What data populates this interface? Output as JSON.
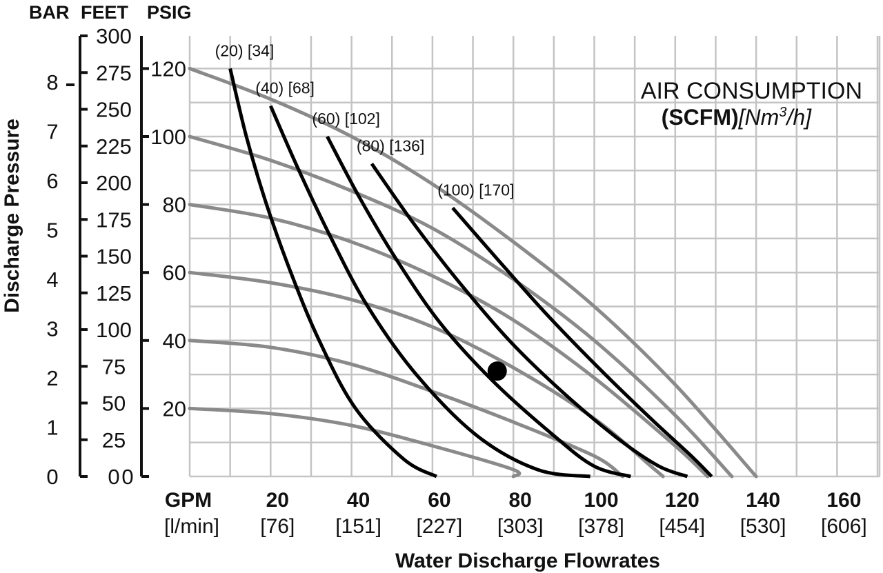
{
  "chart_data": {
    "type": "line",
    "title": {
      "line1": "AIR CONSUMPTION",
      "line2_bold": "(SCFM)",
      "line2_italic_prefix": "[Nm",
      "line2_italic_sup": "3",
      "line2_italic_suffix": "/h]"
    },
    "header_units": [
      "BAR",
      "FEET",
      "PSIG"
    ],
    "ylabel": "Discharge Pressure",
    "xlabel": "Water Discharge Flowrates",
    "x_unit_top": "GPM",
    "x_unit_bottom": "[l/min]",
    "xlim": [
      0,
      170
    ],
    "ylim_psig": [
      0,
      130
    ],
    "x_ticks": [
      {
        "gpm": "20",
        "lpm": "[76]",
        "x": 20
      },
      {
        "gpm": "40",
        "lpm": "[151]",
        "x": 40
      },
      {
        "gpm": "60",
        "lpm": "[227]",
        "x": 60
      },
      {
        "gpm": "80",
        "lpm": "[303]",
        "x": 80
      },
      {
        "gpm": "100",
        "lpm": "[378]",
        "x": 100
      },
      {
        "gpm": "120",
        "lpm": "[454]",
        "x": 120
      },
      {
        "gpm": "140",
        "lpm": "[530]",
        "x": 140
      },
      {
        "gpm": "160",
        "lpm": "[606]",
        "x": 160
      }
    ],
    "psig_ticks": [
      "20",
      "40",
      "60",
      "80",
      "100",
      "120"
    ],
    "psig_tick_values": [
      20,
      40,
      60,
      80,
      100,
      120
    ],
    "feet_ticks": [
      "0",
      "25",
      "50",
      "75",
      "100",
      "125",
      "150",
      "175",
      "200",
      "225",
      "250",
      "275",
      "300"
    ],
    "feet_tick_values": [
      0,
      25,
      50,
      75,
      100,
      125,
      150,
      175,
      200,
      225,
      250,
      275,
      300
    ],
    "bar_ticks": [
      "0",
      "1",
      "2",
      "3",
      "4",
      "5",
      "6",
      "7",
      "8"
    ],
    "bar_tick_values": [
      0,
      1,
      2,
      3,
      4,
      5,
      6,
      7,
      8
    ],
    "psig_zero_label": "0",
    "air_consumption_curves": [
      {
        "label": "(20) [34]",
        "points": [
          [
            10,
            120
          ],
          [
            14,
            100
          ],
          [
            19,
            80
          ],
          [
            25,
            60
          ],
          [
            32,
            40
          ],
          [
            41,
            20
          ],
          [
            53,
            5
          ],
          [
            61,
            0
          ]
        ]
      },
      {
        "label": "(40) [68]",
        "points": [
          [
            20,
            109
          ],
          [
            27,
            90
          ],
          [
            35,
            70
          ],
          [
            44,
            50
          ],
          [
            56,
            30
          ],
          [
            71,
            12
          ],
          [
            86,
            2
          ],
          [
            99,
            0
          ]
        ]
      },
      {
        "label": "(60) [102]",
        "points": [
          [
            34,
            100
          ],
          [
            42,
            82
          ],
          [
            51,
            64
          ],
          [
            62,
            45
          ],
          [
            75,
            28
          ],
          [
            90,
            12
          ],
          [
            100,
            3
          ],
          [
            109,
            0
          ]
        ]
      },
      {
        "label": "(80) [136]",
        "points": [
          [
            45,
            92
          ],
          [
            55,
            75
          ],
          [
            66,
            58
          ],
          [
            79,
            40
          ],
          [
            92,
            25
          ],
          [
            106,
            11
          ],
          [
            116,
            3
          ],
          [
            123,
            0
          ]
        ]
      },
      {
        "label": "(100) [170]",
        "points": [
          [
            65,
            79
          ],
          [
            76,
            64
          ],
          [
            88,
            48
          ],
          [
            101,
            32
          ],
          [
            114,
            17
          ],
          [
            124,
            6
          ],
          [
            129,
            0
          ]
        ]
      }
    ],
    "system_curves": [
      {
        "points": [
          [
            0,
            120
          ],
          [
            20,
            111
          ],
          [
            40,
            100
          ],
          [
            60,
            86
          ],
          [
            80,
            69
          ],
          [
            100,
            50
          ],
          [
            120,
            27
          ],
          [
            140,
            0
          ]
        ]
      },
      {
        "points": [
          [
            0,
            100
          ],
          [
            20,
            93
          ],
          [
            40,
            84
          ],
          [
            60,
            73
          ],
          [
            80,
            58
          ],
          [
            100,
            40
          ],
          [
            120,
            18
          ],
          [
            134,
            0
          ]
        ]
      },
      {
        "points": [
          [
            0,
            80
          ],
          [
            20,
            76
          ],
          [
            40,
            69
          ],
          [
            60,
            59
          ],
          [
            80,
            46
          ],
          [
            100,
            29
          ],
          [
            120,
            9
          ],
          [
            128,
            0
          ]
        ]
      },
      {
        "points": [
          [
            0,
            60
          ],
          [
            20,
            57
          ],
          [
            40,
            52
          ],
          [
            60,
            44
          ],
          [
            80,
            32
          ],
          [
            100,
            17
          ],
          [
            114,
            3
          ],
          [
            117,
            0
          ]
        ]
      },
      {
        "points": [
          [
            0,
            40
          ],
          [
            20,
            38
          ],
          [
            40,
            33
          ],
          [
            60,
            25
          ],
          [
            80,
            16
          ],
          [
            100,
            6
          ],
          [
            107,
            0
          ]
        ]
      },
      {
        "points": [
          [
            0,
            20
          ],
          [
            20,
            18.5
          ],
          [
            40,
            15
          ],
          [
            60,
            9
          ],
          [
            80,
            2
          ],
          [
            80,
            0
          ]
        ]
      }
    ],
    "operating_point": {
      "x": 76,
      "y": 31
    },
    "grid": true,
    "colors": {
      "air_curve": "#000000",
      "system_curve": "#8a8a8a",
      "grid": "#c4c4c4",
      "marker": "#000000"
    }
  }
}
